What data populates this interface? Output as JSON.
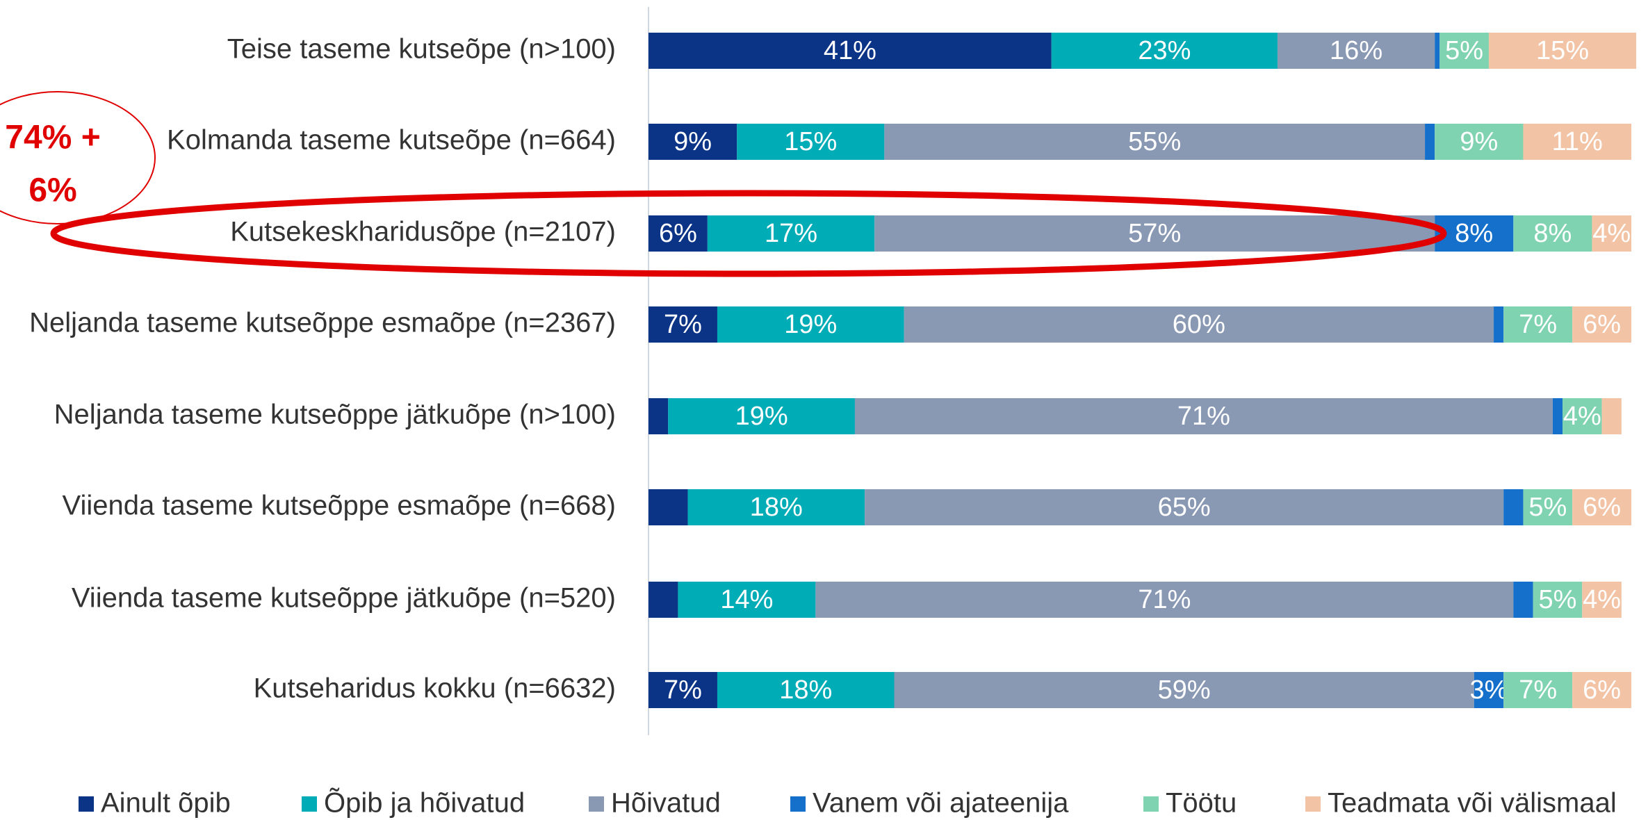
{
  "chart_data": {
    "type": "stacked-bar-horizontal",
    "categories": [
      "Teise taseme kutseõpe (n>100)",
      "Kolmanda taseme kutseõpe (n=664)",
      "Kutsekeskharidusõpe (n=2107)",
      "Neljanda taseme kutseõppe esmaõpe (n=2367)",
      "Neljanda taseme kutseõppe jätkuõpe (n>100)",
      "Viienda taseme kutseõppe esmaõpe (n=668)",
      "Viienda taseme kutseõppe jätkuõpe (n=520)",
      "Kutseharidus kokku (n=6632)"
    ],
    "series": [
      {
        "name": "Ainult õpib",
        "color": "#0b3487",
        "values": [
          41,
          9,
          6,
          7,
          2,
          4,
          3,
          7
        ],
        "value_labels": [
          "41%",
          "9%",
          "6%",
          "7%",
          null,
          null,
          null,
          "7%"
        ]
      },
      {
        "name": "Õpib ja hõivatud",
        "color": "#00acb6",
        "values": [
          23,
          15,
          17,
          19,
          19,
          18,
          14,
          18
        ],
        "value_labels": [
          "23%",
          "15%",
          "17%",
          "19%",
          "19%",
          "18%",
          "14%",
          "18%"
        ]
      },
      {
        "name": "Hõivatud",
        "color": "#8a99b3",
        "values": [
          16,
          55,
          57,
          60,
          71,
          65,
          71,
          59
        ],
        "value_labels": [
          "16%",
          "55%",
          "57%",
          "60%",
          "71%",
          "65%",
          "71%",
          "59%"
        ]
      },
      {
        "name": "Vanem või ajateenija",
        "color": "#1570cc",
        "values": [
          0.5,
          1,
          8,
          1,
          1,
          2,
          2,
          3
        ],
        "value_labels": [
          null,
          null,
          "8%",
          null,
          null,
          null,
          null,
          "3%"
        ]
      },
      {
        "name": "Töötu",
        "color": "#80d3b1",
        "values": [
          5,
          9,
          8,
          7,
          4,
          5,
          5,
          7
        ],
        "value_labels": [
          "5%",
          "9%",
          "8%",
          "7%",
          "4%",
          "5%",
          "5%",
          "7%"
        ]
      },
      {
        "name": "Teadmata või välismaal",
        "color": "#f2c4a5",
        "values": [
          15,
          11,
          4,
          6,
          2,
          6,
          4,
          6
        ],
        "value_labels": [
          "15%",
          "11%",
          "4%",
          "6%",
          null,
          "6%",
          "4%",
          "6%"
        ]
      }
    ],
    "xlim": [
      0,
      100
    ],
    "annotation": [
      "74% +",
      "6%"
    ]
  }
}
